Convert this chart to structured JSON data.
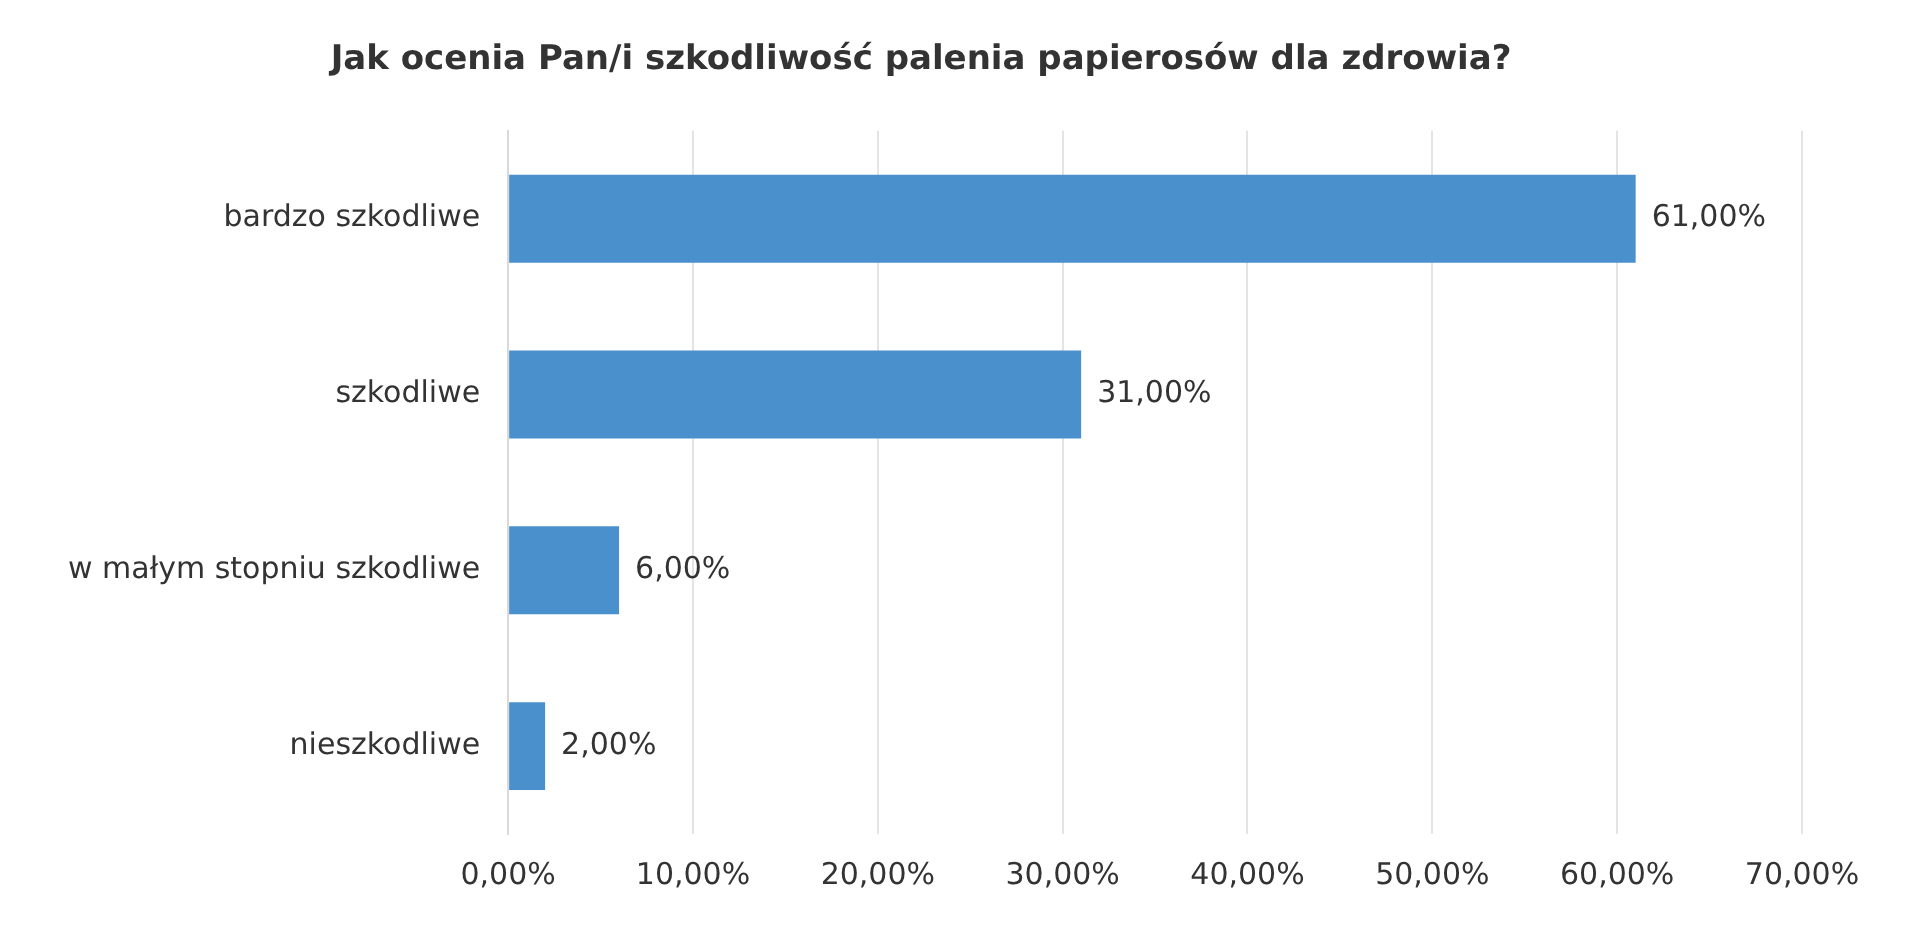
{
  "chart_data": {
    "type": "bar",
    "orientation": "horizontal",
    "title": "Jak ocenia Pan/i szkodliwość palenia papierosów dla zdrowia?",
    "categories": [
      "bardzo szkodliwe",
      "szkodliwe",
      "w małym stopniu szkodliwe",
      "nieszkodliwe"
    ],
    "values": [
      61,
      31,
      6,
      2
    ],
    "color": "#4a90cc",
    "value_labels": [
      "61,00%",
      "31,00%",
      "6,00%",
      "2,00%"
    ],
    "xlim": [
      0,
      70
    ],
    "xticks": [
      {
        "value": 0,
        "label": "0,00%"
      },
      {
        "value": 10,
        "label": "10,00%"
      },
      {
        "value": 20,
        "label": "20,00%"
      },
      {
        "value": 30,
        "label": "30,00%"
      },
      {
        "value": 40,
        "label": "40,00%"
      },
      {
        "value": 50,
        "label": "50,00%"
      },
      {
        "value": 60,
        "label": "60,00%"
      },
      {
        "value": 70,
        "label": "70,00%"
      }
    ],
    "grid": "x"
  }
}
